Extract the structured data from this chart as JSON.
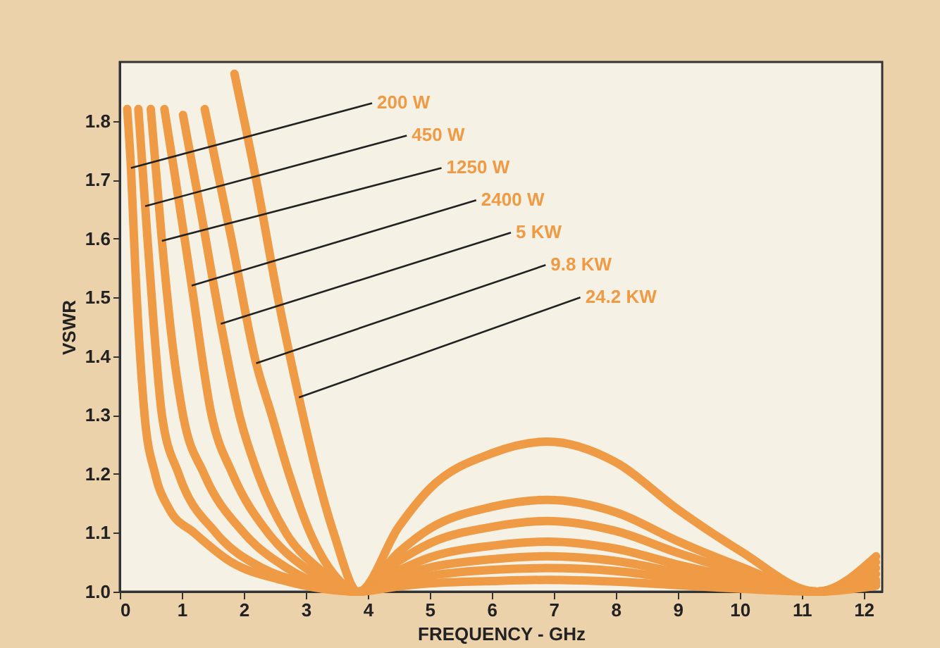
{
  "chart_data": {
    "type": "line",
    "xlabel": "FREQUENCY - GHz",
    "ylabel": "VSWR",
    "xlim": [
      0,
      12.3
    ],
    "ylim": [
      1.0,
      1.9
    ],
    "xticks": [
      0,
      1,
      2,
      3,
      4,
      5,
      6,
      7,
      8,
      9,
      10,
      11,
      12
    ],
    "yticks": [
      {
        "value": 1.0,
        "label": "1.0"
      },
      1.1,
      1.2,
      1.3,
      1.4,
      1.5,
      1.6,
      1.7,
      1.8
    ],
    "grid": false,
    "legend": false,
    "marker": "none",
    "line_style": "solid",
    "series": [
      {
        "color": "#ef9a44",
        "x": [
          0.12,
          0.18,
          0.25,
          0.4,
          0.57,
          0.8,
          1.2,
          1.8,
          2.6,
          3.85,
          4.5,
          5,
          6,
          6.9,
          8,
          9,
          10,
          11.25,
          12.2
        ],
        "values": [
          1.82,
          1.72,
          1.55,
          1.3,
          1.2,
          1.14,
          1.1,
          1.05,
          1.02,
          1.0,
          1.11,
          1.175,
          1.235,
          1.255,
          1.22,
          1.14,
          1.07,
          1.0,
          1.06
        ]
      },
      {
        "color": "#ef9a44",
        "x": [
          0.3,
          0.41,
          0.55,
          0.68,
          0.95,
          1.55,
          2.3,
          3.0,
          3.85,
          4.5,
          5,
          6,
          6.9,
          8,
          9,
          10,
          11.25,
          12.2
        ],
        "values": [
          1.82,
          1.655,
          1.45,
          1.3,
          1.2,
          1.1,
          1.04,
          1.015,
          1.0,
          1.067,
          1.107,
          1.144,
          1.156,
          1.135,
          1.086,
          1.043,
          1.0,
          1.05
        ]
      },
      {
        "color": "#ef9a44",
        "x": [
          0.5,
          0.68,
          0.85,
          1.02,
          1.36,
          2.0,
          2.7,
          3.3,
          3.85,
          4.5,
          5,
          6,
          6.9,
          8,
          9,
          10,
          11.25,
          12.2
        ],
        "values": [
          1.82,
          1.596,
          1.42,
          1.3,
          1.2,
          1.1,
          1.04,
          1.01,
          1.0,
          1.052,
          1.082,
          1.11,
          1.12,
          1.103,
          1.066,
          1.033,
          1.0,
          1.04
        ]
      },
      {
        "color": "#ef9a44",
        "x": [
          0.72,
          0.9,
          1.16,
          1.48,
          1.82,
          2.39,
          3.0,
          3.5,
          3.85,
          4.5,
          5,
          6,
          6.9,
          8,
          9,
          10,
          11.25,
          12.2
        ],
        "values": [
          1.82,
          1.7,
          1.52,
          1.3,
          1.2,
          1.1,
          1.04,
          1.01,
          1.0,
          1.036,
          1.058,
          1.078,
          1.085,
          1.073,
          1.046,
          1.023,
          1.0,
          1.03
        ]
      },
      {
        "color": "#ef9a44",
        "x": [
          1.02,
          1.3,
          1.63,
          1.93,
          2.23,
          2.68,
          3.2,
          3.6,
          3.85,
          4.5,
          5,
          6,
          6.9,
          8,
          9,
          10,
          11.25,
          12.2
        ],
        "values": [
          1.81,
          1.65,
          1.455,
          1.3,
          1.2,
          1.1,
          1.04,
          1.01,
          1.0,
          1.026,
          1.041,
          1.055,
          1.06,
          1.052,
          1.033,
          1.016,
          1.0,
          1.02
        ]
      },
      {
        "color": "#ef9a44",
        "x": [
          1.37,
          1.8,
          2.2,
          2.45,
          2.73,
          3.07,
          3.45,
          3.85,
          4.5,
          5,
          6,
          6.9,
          8,
          9,
          10,
          11.25,
          12.2
        ],
        "values": [
          1.82,
          1.6,
          1.388,
          1.3,
          1.2,
          1.1,
          1.03,
          1.0,
          1.017,
          1.027,
          1.037,
          1.04,
          1.035,
          1.022,
          1.011,
          1.0,
          1.015
        ]
      },
      {
        "color": "#ef9a44",
        "x": [
          1.85,
          2.2,
          2.55,
          2.89,
          3.18,
          3.45,
          3.85,
          4.5,
          5,
          6,
          6.9,
          8,
          9,
          10,
          11.25,
          12.2
        ],
        "values": [
          1.88,
          1.7,
          1.5,
          1.33,
          1.2,
          1.1,
          1.0,
          1.009,
          1.014,
          1.018,
          1.02,
          1.017,
          1.011,
          1.005,
          1.0,
          1.01
        ]
      }
    ],
    "annotations": [
      {
        "text": "200 W",
        "x": 0.18,
        "y": 1.72
      },
      {
        "text": "450 W",
        "x": 0.41,
        "y": 1.655
      },
      {
        "text": "1250 W",
        "x": 0.68,
        "y": 1.596
      },
      {
        "text": "2400 W",
        "x": 1.16,
        "y": 1.52
      },
      {
        "text": "5 KW",
        "x": 1.63,
        "y": 1.455
      },
      {
        "text": "9.8 KW",
        "x": 2.2,
        "y": 1.388
      },
      {
        "text": "24.2 KW",
        "x": 2.89,
        "y": 1.33
      }
    ]
  }
}
